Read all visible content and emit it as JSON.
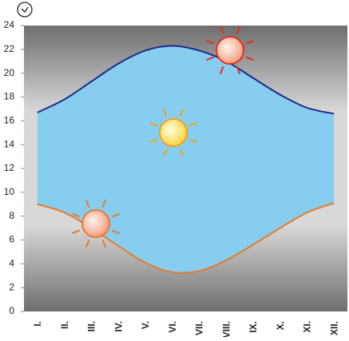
{
  "chart_data": {
    "type": "line",
    "categories": [
      "I.",
      "II.",
      "III.",
      "IV.",
      "V.",
      "VI.",
      "VII.",
      "VIII.",
      "IX.",
      "X.",
      "XI.",
      "XII."
    ],
    "series": [
      {
        "color": "#1f2a8a",
        "values": [
          16.7,
          17.8,
          19.3,
          20.8,
          21.9,
          22.3,
          21.9,
          21.0,
          19.6,
          18.2,
          17.1,
          16.6
        ]
      },
      {
        "color": "#e87a2c",
        "values": [
          9.0,
          8.3,
          7.0,
          5.5,
          4.1,
          3.3,
          3.4,
          4.3,
          5.6,
          7.0,
          8.3,
          9.1
        ]
      }
    ],
    "fill": "#87cdf0",
    "ylim": [
      0,
      24
    ],
    "yticks": [
      0,
      2,
      4,
      6,
      8,
      10,
      12,
      14,
      16,
      18,
      20,
      22,
      24
    ]
  }
}
